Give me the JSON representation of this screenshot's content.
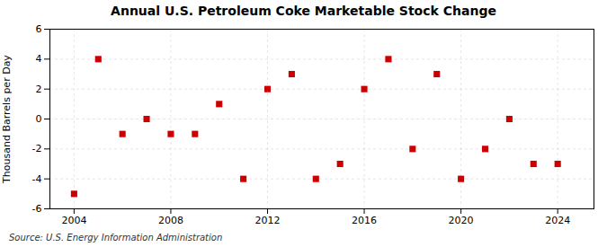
{
  "chart_data": {
    "type": "scatter",
    "title": "Annual U.S. Petroleum Coke Marketable Stock Change",
    "ylabel": "Thousand Barrels per Day",
    "source": "Source: U.S. Energy Information Administration",
    "x": [
      2004,
      2005,
      2006,
      2007,
      2008,
      2009,
      2010,
      2011,
      2012,
      2013,
      2014,
      2015,
      2016,
      2017,
      2018,
      2019,
      2020,
      2021,
      2022,
      2023,
      2024
    ],
    "values": [
      -5.0,
      4.0,
      -1.0,
      0.0,
      -1.0,
      -1.0,
      1.0,
      -4.0,
      2.0,
      3.0,
      -4.0,
      -3.0,
      2.0,
      4.0,
      -2.0,
      3.0,
      -4.0,
      -2.0,
      0.0,
      -3.0,
      -3.0
    ],
    "color": "#cc0000",
    "marker": "square",
    "xlim": [
      2003.0,
      2025.5
    ],
    "xticks": [
      2004,
      2008,
      2012,
      2016,
      2020,
      2024
    ],
    "ylim": [
      -6,
      6
    ],
    "yticks": [
      -6,
      -4,
      -2,
      0,
      2,
      4,
      6
    ],
    "grid": true
  }
}
